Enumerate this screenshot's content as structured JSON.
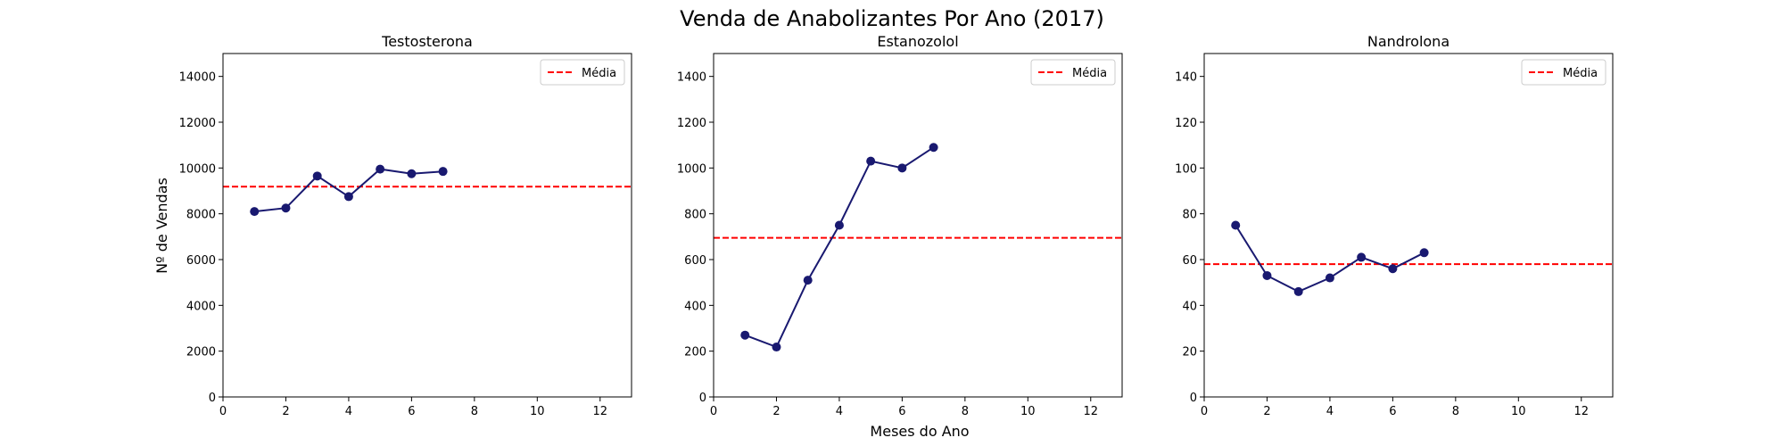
{
  "figure": {
    "title": "Venda de Anabolizantes Por Ano (2017)",
    "xlabel": "Meses do Ano",
    "ylabel": "Nº de Vendas"
  },
  "colors": {
    "series": "#191970",
    "mean_line": "#ff0000",
    "axes": "#000000"
  },
  "chart_data": [
    {
      "type": "line",
      "title": "Testosterona",
      "x": [
        1,
        2,
        3,
        4,
        5,
        6,
        7
      ],
      "y": [
        8100,
        8250,
        9650,
        8750,
        9950,
        9750,
        9850
      ],
      "xlim": [
        0,
        13
      ],
      "ylim": [
        0,
        15000
      ],
      "xticks": [
        0,
        2,
        4,
        6,
        8,
        10,
        12
      ],
      "yticks": [
        0,
        2000,
        4000,
        6000,
        8000,
        10000,
        12000,
        14000
      ],
      "mean": 9185,
      "legend": {
        "label": "Média",
        "position": "top-right"
      },
      "grid": false
    },
    {
      "type": "line",
      "title": "Estanozolol",
      "x": [
        1,
        2,
        3,
        4,
        5,
        6,
        7
      ],
      "y": [
        270,
        218,
        510,
        750,
        1030,
        1000,
        1090
      ],
      "xlim": [
        0,
        13
      ],
      "ylim": [
        0,
        1500
      ],
      "xticks": [
        0,
        2,
        4,
        6,
        8,
        10,
        12
      ],
      "yticks": [
        0,
        200,
        400,
        600,
        800,
        1000,
        1200,
        1400
      ],
      "mean": 695,
      "legend": {
        "label": "Média",
        "position": "top-right"
      },
      "grid": false
    },
    {
      "type": "line",
      "title": "Nandrolona",
      "x": [
        1,
        2,
        3,
        4,
        5,
        6,
        7
      ],
      "y": [
        75,
        53,
        46,
        52,
        61,
        56,
        63
      ],
      "xlim": [
        0,
        13
      ],
      "ylim": [
        0,
        150
      ],
      "xticks": [
        0,
        2,
        4,
        6,
        8,
        10,
        12
      ],
      "yticks": [
        0,
        20,
        40,
        60,
        80,
        100,
        120,
        140
      ],
      "mean": 58,
      "legend": {
        "label": "Média",
        "position": "top-right"
      },
      "grid": false
    }
  ]
}
